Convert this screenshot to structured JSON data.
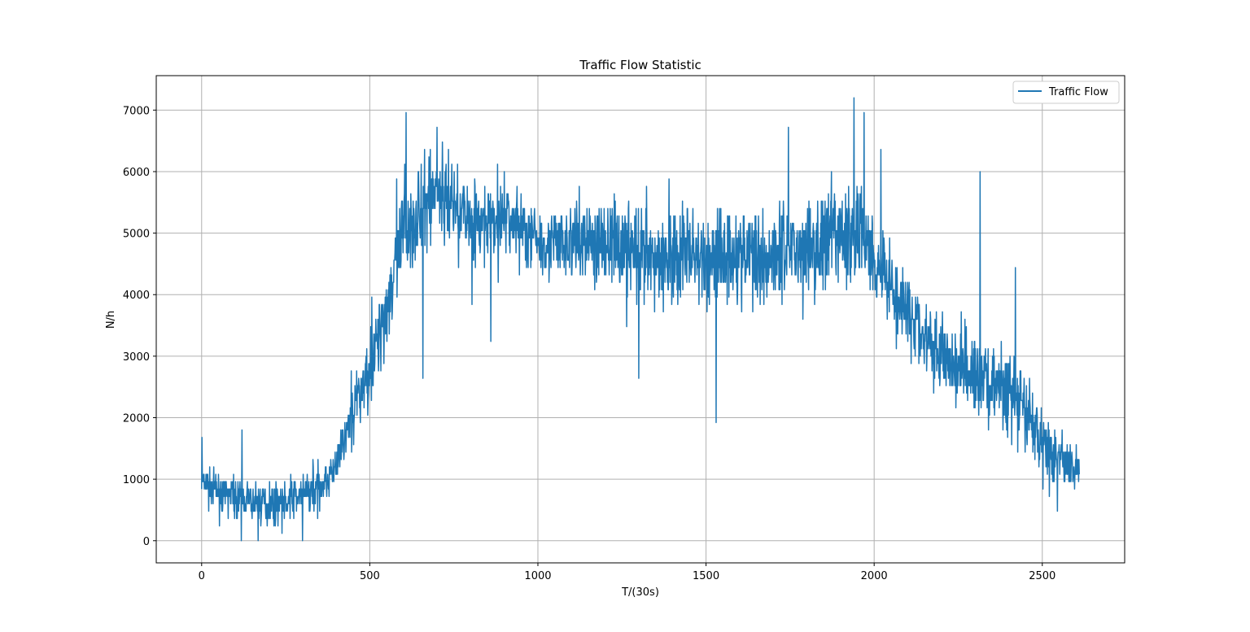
{
  "chart_data": {
    "type": "line",
    "title": "Traffic Flow Statistic",
    "xlabel": "T/(30s)",
    "ylabel": "N/h",
    "xlim": [
      -135,
      2745
    ],
    "ylim": [
      -360,
      7560
    ],
    "xticks": [
      0,
      500,
      1000,
      1500,
      2000,
      2500
    ],
    "yticks": [
      0,
      1000,
      2000,
      3000,
      4000,
      5000,
      6000,
      7000
    ],
    "grid": true,
    "legend_position": "top-right",
    "series": [
      {
        "name": "Traffic Flow",
        "color": "#1f77b4",
        "anchors": [
          [
            0,
            950
          ],
          [
            50,
            800
          ],
          [
            100,
            700
          ],
          [
            150,
            600
          ],
          [
            200,
            620
          ],
          [
            250,
            650
          ],
          [
            300,
            750
          ],
          [
            350,
            900
          ],
          [
            400,
            1200
          ],
          [
            450,
            2100
          ],
          [
            500,
            2800
          ],
          [
            550,
            3800
          ],
          [
            600,
            5000
          ],
          [
            650,
            5300
          ],
          [
            700,
            5700
          ],
          [
            750,
            5500
          ],
          [
            800,
            5200
          ],
          [
            850,
            5100
          ],
          [
            900,
            5300
          ],
          [
            950,
            5100
          ],
          [
            1000,
            4900
          ],
          [
            1050,
            4800
          ],
          [
            1100,
            4850
          ],
          [
            1150,
            4900
          ],
          [
            1200,
            4850
          ],
          [
            1250,
            4800
          ],
          [
            1300,
            4600
          ],
          [
            1350,
            4500
          ],
          [
            1400,
            4600
          ],
          [
            1450,
            4700
          ],
          [
            1500,
            4500
          ],
          [
            1550,
            4700
          ],
          [
            1600,
            4600
          ],
          [
            1650,
            4600
          ],
          [
            1700,
            4700
          ],
          [
            1750,
            4800
          ],
          [
            1800,
            4700
          ],
          [
            1850,
            4900
          ],
          [
            1900,
            4900
          ],
          [
            1950,
            5000
          ],
          [
            2000,
            4700
          ],
          [
            2050,
            4200
          ],
          [
            2100,
            3700
          ],
          [
            2150,
            3300
          ],
          [
            2200,
            3000
          ],
          [
            2250,
            2800
          ],
          [
            2300,
            2700
          ],
          [
            2350,
            2600
          ],
          [
            2400,
            2400
          ],
          [
            2450,
            2100
          ],
          [
            2500,
            1600
          ],
          [
            2550,
            1300
          ],
          [
            2610,
            1200
          ]
        ],
        "noise_amplitude": [
          [
            0,
            350
          ],
          [
            400,
            500
          ],
          [
            500,
            900
          ],
          [
            600,
            1100
          ],
          [
            1000,
            800
          ],
          [
            1300,
            1100
          ],
          [
            1950,
            1200
          ],
          [
            2100,
            900
          ],
          [
            2400,
            900
          ],
          [
            2610,
            500
          ]
        ],
        "spikes": [
          [
            1,
            1680
          ],
          [
            120,
            1800
          ],
          [
            118,
            0
          ],
          [
            168,
            0
          ],
          [
            300,
            0
          ],
          [
            608,
            6960
          ],
          [
            658,
            2640
          ],
          [
            700,
            6720
          ],
          [
            860,
            3240
          ],
          [
            1300,
            2640
          ],
          [
            1530,
            1920
          ],
          [
            1745,
            6720
          ],
          [
            1940,
            7200
          ],
          [
            1970,
            6960
          ],
          [
            2020,
            6360
          ],
          [
            2315,
            6000
          ],
          [
            2420,
            4440
          ]
        ],
        "n_points": 2610,
        "y_step": 120,
        "seed": 7
      }
    ]
  }
}
